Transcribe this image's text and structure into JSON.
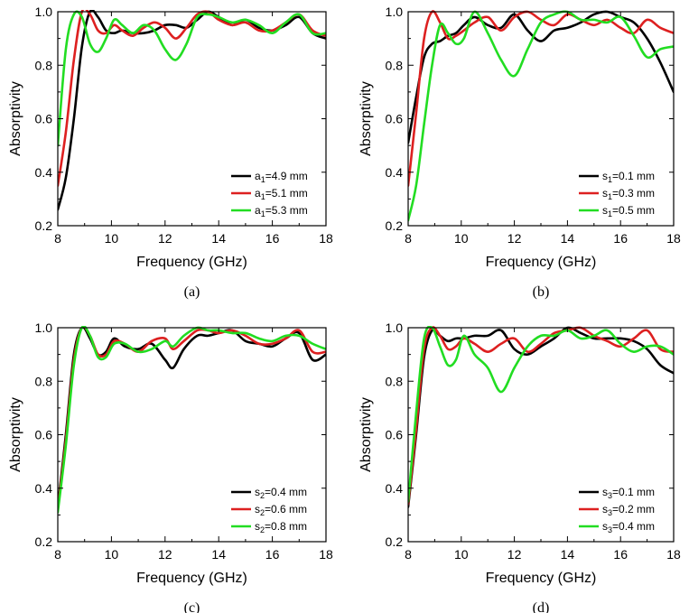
{
  "chart_data": [
    {
      "type": "line",
      "panel_label": "(a)",
      "xlabel": "Frequency (GHz)",
      "ylabel": "Absorptivity",
      "xlim": [
        8,
        18
      ],
      "ylim": [
        0.2,
        1.0
      ],
      "xticks": [
        "8",
        "10",
        "12",
        "14",
        "16",
        "18"
      ],
      "yticks": [
        "0.2",
        "0.4",
        "0.6",
        "0.8",
        "1.0"
      ],
      "legend_position": "bottom-right",
      "series": [
        {
          "name": "a1=4.9 mm",
          "legend_base": "a",
          "legend_sub": "1",
          "legend_rest": "=4.9 mm",
          "color": "#000000",
          "x": [
            8,
            8.3,
            8.6,
            8.9,
            9.2,
            9.5,
            9.8,
            10.1,
            10.4,
            10.8,
            11.2,
            11.6,
            12.0,
            12.4,
            12.8,
            13.2,
            13.6,
            14.0,
            14.5,
            15.0,
            15.5,
            16.0,
            16.5,
            17.0,
            17.5,
            18
          ],
          "y": [
            0.26,
            0.38,
            0.6,
            0.87,
            1.0,
            0.98,
            0.93,
            0.92,
            0.93,
            0.92,
            0.92,
            0.93,
            0.95,
            0.95,
            0.94,
            0.97,
            1.0,
            0.98,
            0.95,
            0.97,
            0.94,
            0.93,
            0.95,
            0.98,
            0.92,
            0.9
          ]
        },
        {
          "name": "a1=5.1 mm",
          "legend_base": "a",
          "legend_sub": "1",
          "legend_rest": "=5.1 mm",
          "color": "#dd2020",
          "x": [
            8,
            8.3,
            8.6,
            8.9,
            9.2,
            9.5,
            9.8,
            10.1,
            10.4,
            10.8,
            11.2,
            11.6,
            12.0,
            12.4,
            12.8,
            13.2,
            13.6,
            14.0,
            14.5,
            15.0,
            15.5,
            16.0,
            16.5,
            17.0,
            17.5,
            18
          ],
          "y": [
            0.35,
            0.55,
            0.82,
            1.0,
            0.99,
            0.93,
            0.92,
            0.95,
            0.93,
            0.91,
            0.94,
            0.96,
            0.94,
            0.9,
            0.94,
            0.99,
            1.0,
            0.97,
            0.95,
            0.96,
            0.93,
            0.93,
            0.96,
            0.99,
            0.93,
            0.91
          ]
        },
        {
          "name": "a1=5.3 mm",
          "legend_base": "a",
          "legend_sub": "1",
          "legend_rest": "=5.3 mm",
          "color": "#22dd22",
          "x": [
            8,
            8.3,
            8.6,
            8.9,
            9.2,
            9.5,
            9.8,
            10.1,
            10.4,
            10.8,
            11.2,
            11.6,
            12.0,
            12.4,
            12.8,
            13.2,
            13.6,
            14.0,
            14.5,
            15.0,
            15.5,
            16.0,
            16.5,
            17.0,
            17.5,
            18
          ],
          "y": [
            0.5,
            0.86,
            0.99,
            0.98,
            0.88,
            0.85,
            0.9,
            0.97,
            0.95,
            0.92,
            0.95,
            0.93,
            0.86,
            0.82,
            0.88,
            0.98,
            0.99,
            0.98,
            0.96,
            0.97,
            0.95,
            0.92,
            0.96,
            0.99,
            0.92,
            0.92
          ]
        }
      ]
    },
    {
      "type": "line",
      "panel_label": "(b)",
      "xlabel": "Frequency (GHz)",
      "ylabel": "Absorptivity",
      "xlim": [
        8,
        18
      ],
      "ylim": [
        0.2,
        1.0
      ],
      "xticks": [
        "8",
        "10",
        "12",
        "14",
        "16",
        "18"
      ],
      "yticks": [
        "0.2",
        "0.4",
        "0.6",
        "0.8",
        "1.0"
      ],
      "legend_position": "bottom-right",
      "series": [
        {
          "name": "s1=0.1 mm",
          "legend_base": "s",
          "legend_sub": "1",
          "legend_rest": "=0.1 mm",
          "color": "#000000",
          "x": [
            8,
            8.3,
            8.6,
            8.9,
            9.2,
            9.5,
            9.8,
            10.1,
            10.5,
            11.0,
            11.5,
            12.0,
            12.5,
            13.0,
            13.5,
            14.0,
            14.5,
            15.0,
            15.5,
            16.0,
            16.5,
            17.0,
            17.5,
            18
          ],
          "y": [
            0.51,
            0.68,
            0.83,
            0.88,
            0.89,
            0.91,
            0.92,
            0.95,
            0.98,
            0.95,
            0.94,
            0.99,
            0.93,
            0.89,
            0.93,
            0.94,
            0.96,
            0.99,
            1.0,
            0.98,
            0.96,
            0.9,
            0.81,
            0.7
          ]
        },
        {
          "name": "s1=0.3 mm",
          "legend_base": "s",
          "legend_sub": "1",
          "legend_rest": "=0.3 mm",
          "color": "#dd2020",
          "x": [
            8,
            8.3,
            8.6,
            8.9,
            9.2,
            9.5,
            9.8,
            10.1,
            10.5,
            11.0,
            11.5,
            12.0,
            12.5,
            13.0,
            13.5,
            14.0,
            14.5,
            15.0,
            15.5,
            16.0,
            16.5,
            17.0,
            17.5,
            18
          ],
          "y": [
            0.35,
            0.62,
            0.9,
            1.0,
            0.96,
            0.9,
            0.91,
            0.93,
            0.96,
            0.98,
            0.93,
            0.98,
            1.0,
            0.97,
            0.95,
            0.99,
            0.97,
            0.95,
            0.97,
            0.94,
            0.92,
            0.97,
            0.94,
            0.92
          ]
        },
        {
          "name": "s1=0.5 mm",
          "legend_base": "s",
          "legend_sub": "1",
          "legend_rest": "=0.5 mm",
          "color": "#22dd22",
          "x": [
            8,
            8.3,
            8.6,
            8.9,
            9.2,
            9.5,
            9.8,
            10.1,
            10.5,
            11.0,
            11.5,
            12.0,
            12.5,
            13.0,
            13.5,
            14.0,
            14.5,
            15.0,
            15.5,
            16.0,
            16.5,
            17.0,
            17.5,
            18
          ],
          "y": [
            0.22,
            0.35,
            0.58,
            0.8,
            0.95,
            0.92,
            0.88,
            0.9,
            1.0,
            0.92,
            0.82,
            0.76,
            0.86,
            0.96,
            0.99,
            1.0,
            0.97,
            0.97,
            0.96,
            0.98,
            0.91,
            0.83,
            0.86,
            0.87
          ]
        }
      ]
    },
    {
      "type": "line",
      "panel_label": "(c)",
      "xlabel": "Frequency (GHz)",
      "ylabel": "Absorptivity",
      "xlim": [
        8,
        18
      ],
      "ylim": [
        0.2,
        1.0
      ],
      "xticks": [
        "8",
        "10",
        "12",
        "14",
        "16",
        "18"
      ],
      "yticks": [
        "0.2",
        "0.4",
        "0.6",
        "0.8",
        "1.0"
      ],
      "legend_position": "bottom-right",
      "series": [
        {
          "name": "s2=0.4 mm",
          "legend_base": "s",
          "legend_sub": "2",
          "legend_rest": "=0.4 mm",
          "color": "#000000",
          "x": [
            8,
            8.3,
            8.6,
            8.9,
            9.2,
            9.5,
            9.8,
            10.1,
            10.5,
            11.0,
            11.5,
            12.0,
            12.3,
            12.7,
            13.2,
            13.6,
            14.0,
            14.5,
            15.0,
            15.5,
            16.0,
            16.5,
            17.0,
            17.5,
            18
          ],
          "y": [
            0.33,
            0.6,
            0.9,
            1.0,
            0.96,
            0.9,
            0.91,
            0.96,
            0.93,
            0.92,
            0.94,
            0.88,
            0.85,
            0.92,
            0.97,
            0.97,
            0.98,
            0.99,
            0.95,
            0.94,
            0.93,
            0.96,
            0.98,
            0.88,
            0.9
          ]
        },
        {
          "name": "s2=0.6 mm",
          "legend_base": "s",
          "legend_sub": "2",
          "legend_rest": "=0.6 mm",
          "color": "#dd2020",
          "x": [
            8,
            8.3,
            8.6,
            8.9,
            9.2,
            9.5,
            9.8,
            10.1,
            10.5,
            11.0,
            11.5,
            12.0,
            12.3,
            12.7,
            13.2,
            13.6,
            14.0,
            14.5,
            15.0,
            15.5,
            16.0,
            16.5,
            17.0,
            17.5,
            18
          ],
          "y": [
            0.32,
            0.58,
            0.88,
            1.0,
            0.97,
            0.9,
            0.9,
            0.95,
            0.94,
            0.91,
            0.95,
            0.96,
            0.92,
            0.95,
            0.99,
            0.99,
            0.98,
            0.99,
            0.97,
            0.94,
            0.94,
            0.96,
            0.99,
            0.91,
            0.91
          ]
        },
        {
          "name": "s2=0.8 mm",
          "legend_base": "s",
          "legend_sub": "2",
          "legend_rest": "=0.8 mm",
          "color": "#22dd22",
          "x": [
            8,
            8.3,
            8.6,
            8.9,
            9.2,
            9.5,
            9.8,
            10.1,
            10.5,
            11.0,
            11.5,
            12.0,
            12.3,
            12.7,
            13.2,
            13.6,
            14.0,
            14.5,
            15.0,
            15.5,
            16.0,
            16.5,
            17.0,
            17.5,
            18
          ],
          "y": [
            0.31,
            0.56,
            0.86,
            1.0,
            0.97,
            0.89,
            0.89,
            0.94,
            0.94,
            0.91,
            0.92,
            0.95,
            0.93,
            0.97,
            1.0,
            0.99,
            0.99,
            0.98,
            0.98,
            0.96,
            0.95,
            0.97,
            0.97,
            0.94,
            0.92
          ]
        }
      ]
    },
    {
      "type": "line",
      "panel_label": "(d)",
      "xlabel": "Frequency (GHz)",
      "ylabel": "Absorptivity",
      "xlim": [
        8,
        18
      ],
      "ylim": [
        0.2,
        1.0
      ],
      "xticks": [
        "8",
        "10",
        "12",
        "14",
        "16",
        "18"
      ],
      "yticks": [
        "0.2",
        "0.4",
        "0.6",
        "0.8",
        "1.0"
      ],
      "legend_position": "bottom-right",
      "series": [
        {
          "name": "s3=0.1 mm",
          "legend_base": "s",
          "legend_sub": "3",
          "legend_rest": "=0.1 mm",
          "color": "#000000",
          "x": [
            8,
            8.3,
            8.6,
            8.9,
            9.2,
            9.5,
            9.8,
            10.1,
            10.5,
            11.0,
            11.5,
            12.0,
            12.5,
            13.0,
            13.5,
            14.0,
            14.5,
            15.0,
            15.5,
            16.0,
            16.5,
            17.0,
            17.5,
            18
          ],
          "y": [
            0.33,
            0.6,
            0.89,
            0.99,
            0.97,
            0.95,
            0.96,
            0.96,
            0.97,
            0.97,
            0.99,
            0.92,
            0.9,
            0.93,
            0.96,
            1.0,
            0.98,
            0.96,
            0.96,
            0.96,
            0.95,
            0.92,
            0.86,
            0.83
          ]
        },
        {
          "name": "s3=0.2 mm",
          "legend_base": "s",
          "legend_sub": "3",
          "legend_rest": "=0.2 mm",
          "color": "#dd2020",
          "x": [
            8,
            8.3,
            8.6,
            8.9,
            9.2,
            9.5,
            9.8,
            10.1,
            10.5,
            11.0,
            11.5,
            12.0,
            12.5,
            13.0,
            13.5,
            14.0,
            14.5,
            15.0,
            15.5,
            16.0,
            16.5,
            17.0,
            17.5,
            18
          ],
          "y": [
            0.34,
            0.62,
            0.92,
            1.0,
            0.97,
            0.92,
            0.93,
            0.96,
            0.94,
            0.91,
            0.94,
            0.96,
            0.91,
            0.94,
            0.98,
            0.99,
            1.0,
            0.97,
            0.95,
            0.93,
            0.96,
            0.99,
            0.92,
            0.91
          ]
        },
        {
          "name": "s3=0.4 mm",
          "legend_base": "s",
          "legend_sub": "3",
          "legend_rest": "=0.4 mm",
          "color": "#22dd22",
          "x": [
            8,
            8.3,
            8.6,
            8.9,
            9.2,
            9.5,
            9.8,
            10.1,
            10.5,
            11.0,
            11.5,
            12.0,
            12.5,
            13.0,
            13.5,
            14.0,
            14.5,
            15.0,
            15.5,
            16.0,
            16.5,
            17.0,
            17.5,
            18
          ],
          "y": [
            0.35,
            0.68,
            0.96,
            1.0,
            0.93,
            0.86,
            0.88,
            0.97,
            0.9,
            0.85,
            0.76,
            0.85,
            0.93,
            0.97,
            0.97,
            0.99,
            0.96,
            0.97,
            0.99,
            0.94,
            0.91,
            0.93,
            0.93,
            0.9
          ]
        }
      ]
    }
  ]
}
